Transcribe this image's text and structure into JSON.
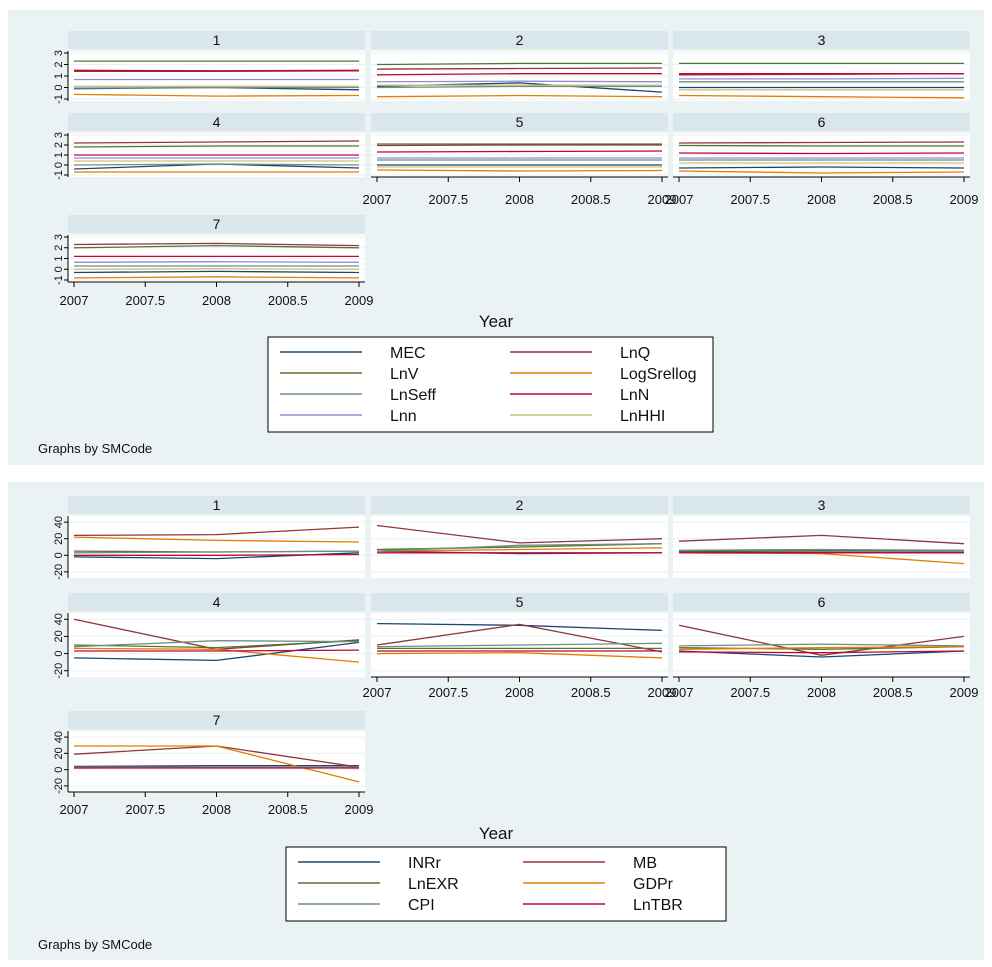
{
  "figures": [
    {
      "id": "top",
      "x_ticks": [
        "2007",
        "2007.5",
        "2008",
        "2008.5",
        "2009"
      ],
      "y_ticks": [
        "-1",
        "0",
        "1",
        "2",
        "3"
      ],
      "xlabel": "Year",
      "note": "Graphs by SMCode",
      "legend_columns": 2,
      "legend": [
        {
          "label": "MEC",
          "color": "#1a476f"
        },
        {
          "label": "LnQ",
          "color": "#90353b"
        },
        {
          "label": "LnV",
          "color": "#55752f"
        },
        {
          "label": "LogSrellog",
          "color": "#e37e00"
        },
        {
          "label": "LnSeff",
          "color": "#6e8e84"
        },
        {
          "label": "LnN",
          "color": "#c10534"
        },
        {
          "label": "Lnn",
          "color": "#938dd2"
        },
        {
          "label": "LnHHI",
          "color": "#cac27e"
        }
      ]
    },
    {
      "id": "bottom",
      "x_ticks": [
        "2007",
        "2007.5",
        "2008",
        "2008.5",
        "2009"
      ],
      "y_ticks": [
        "-20",
        "0",
        "20",
        "40"
      ],
      "xlabel": "Year",
      "note": "Graphs by SMCode",
      "legend_columns": 2,
      "legend": [
        {
          "label": "INRr",
          "color": "#1a476f"
        },
        {
          "label": "MB",
          "color": "#90353b"
        },
        {
          "label": "LnEXR",
          "color": "#55752f"
        },
        {
          "label": "GDPr",
          "color": "#e37e00"
        },
        {
          "label": "CPI",
          "color": "#6e8e84"
        },
        {
          "label": "LnTBR",
          "color": "#c10534"
        }
      ]
    }
  ],
  "chart_data": [
    {
      "type": "line",
      "title": "",
      "facet_by": "SMCode",
      "xlabel": "Year",
      "ylabel": "",
      "x": [
        2007,
        2008,
        2009
      ],
      "xlim": [
        2007,
        2009
      ],
      "ylim": [
        -1,
        3
      ],
      "panels": [
        {
          "title": "1",
          "series": [
            {
              "name": "MEC",
              "values": [
                -0.1,
                0.0,
                -0.2
              ]
            },
            {
              "name": "LnQ",
              "values": [
                1.4,
                1.4,
                1.45
              ]
            },
            {
              "name": "LnV",
              "values": [
                2.3,
                2.3,
                2.3
              ]
            },
            {
              "name": "LogSrellog",
              "values": [
                -0.6,
                -0.75,
                -0.7
              ]
            },
            {
              "name": "LnSeff",
              "values": [
                -0.05,
                0.0,
                0.0
              ]
            },
            {
              "name": "LnN",
              "values": [
                1.5,
                1.45,
                1.5
              ]
            },
            {
              "name": "Lnn",
              "values": [
                0.7,
                0.7,
                0.7
              ]
            },
            {
              "name": "LnHHI",
              "values": [
                0.1,
                0.1,
                0.1
              ]
            }
          ]
        },
        {
          "title": "2",
          "series": [
            {
              "name": "MEC",
              "values": [
                0.1,
                0.4,
                -0.4
              ]
            },
            {
              "name": "LnQ",
              "values": [
                1.6,
                1.65,
                1.7
              ]
            },
            {
              "name": "LnV",
              "values": [
                2.0,
                2.1,
                2.1
              ]
            },
            {
              "name": "LogSrellog",
              "values": [
                -0.8,
                -0.7,
                -0.8
              ]
            },
            {
              "name": "LnSeff",
              "values": [
                0.0,
                0.1,
                0.1
              ]
            },
            {
              "name": "LnN",
              "values": [
                1.1,
                1.2,
                1.2
              ]
            },
            {
              "name": "Lnn",
              "values": [
                0.5,
                0.55,
                0.5
              ]
            },
            {
              "name": "LnHHI",
              "values": [
                0.2,
                0.2,
                0.2
              ]
            }
          ]
        },
        {
          "title": "3",
          "series": [
            {
              "name": "MEC",
              "values": [
                0.0,
                0.0,
                0.0
              ]
            },
            {
              "name": "LnQ",
              "values": [
                1.1,
                1.15,
                1.2
              ]
            },
            {
              "name": "LnV",
              "values": [
                2.1,
                2.1,
                2.1
              ]
            },
            {
              "name": "LogSrellog",
              "values": [
                -0.7,
                -0.8,
                -0.9
              ]
            },
            {
              "name": "LnSeff",
              "values": [
                0.5,
                0.5,
                0.5
              ]
            },
            {
              "name": "LnN",
              "values": [
                1.2,
                1.2,
                1.2
              ]
            },
            {
              "name": "Lnn",
              "values": [
                0.75,
                0.75,
                0.8
              ]
            },
            {
              "name": "LnHHI",
              "values": [
                -0.2,
                -0.2,
                -0.2
              ]
            }
          ]
        },
        {
          "title": "4",
          "series": [
            {
              "name": "MEC",
              "values": [
                -0.4,
                0.1,
                -0.3
              ]
            },
            {
              "name": "LnQ",
              "values": [
                2.2,
                2.3,
                2.4
              ]
            },
            {
              "name": "LnV",
              "values": [
                1.8,
                1.9,
                1.9
              ]
            },
            {
              "name": "LogSrellog",
              "values": [
                -0.7,
                -0.7,
                -0.7
              ]
            },
            {
              "name": "LnSeff",
              "values": [
                0.0,
                0.1,
                0.0
              ]
            },
            {
              "name": "LnN",
              "values": [
                1.0,
                1.0,
                1.0
              ]
            },
            {
              "name": "Lnn",
              "values": [
                0.7,
                0.7,
                0.7
              ]
            },
            {
              "name": "LnHHI",
              "values": [
                0.4,
                0.4,
                0.4
              ]
            }
          ]
        },
        {
          "title": "5",
          "series": [
            {
              "name": "MEC",
              "values": [
                0.0,
                0.0,
                0.0
              ]
            },
            {
              "name": "LnQ",
              "values": [
                1.95,
                2.0,
                2.0
              ]
            },
            {
              "name": "LnV",
              "values": [
                2.1,
                2.1,
                2.1
              ]
            },
            {
              "name": "LogSrellog",
              "values": [
                -0.5,
                -0.6,
                -0.55
              ]
            },
            {
              "name": "LnSeff",
              "values": [
                0.5,
                0.5,
                0.5
              ]
            },
            {
              "name": "LnN",
              "values": [
                1.3,
                1.35,
                1.4
              ]
            },
            {
              "name": "Lnn",
              "values": [
                0.7,
                0.7,
                0.7
              ]
            },
            {
              "name": "LnHHI",
              "values": [
                -0.2,
                -0.2,
                -0.2
              ]
            }
          ]
        },
        {
          "title": "6",
          "series": [
            {
              "name": "MEC",
              "values": [
                -0.3,
                -0.2,
                -0.3
              ]
            },
            {
              "name": "LnQ",
              "values": [
                2.2,
                2.25,
                2.3
              ]
            },
            {
              "name": "LnV",
              "values": [
                1.95,
                1.9,
                1.9
              ]
            },
            {
              "name": "LogSrellog",
              "values": [
                -0.6,
                -0.8,
                -0.7
              ]
            },
            {
              "name": "LnSeff",
              "values": [
                0.5,
                0.5,
                0.5
              ]
            },
            {
              "name": "LnN",
              "values": [
                1.2,
                1.15,
                1.2
              ]
            },
            {
              "name": "Lnn",
              "values": [
                0.7,
                0.7,
                0.7
              ]
            },
            {
              "name": "LnHHI",
              "values": [
                0.2,
                0.2,
                0.2
              ]
            }
          ]
        },
        {
          "title": "7",
          "series": [
            {
              "name": "MEC",
              "values": [
                -0.3,
                -0.2,
                -0.3
              ]
            },
            {
              "name": "LnQ",
              "values": [
                2.3,
                2.4,
                2.2
              ]
            },
            {
              "name": "LnV",
              "values": [
                2.0,
                2.2,
                2.0
              ]
            },
            {
              "name": "LogSrellog",
              "values": [
                -0.8,
                -0.7,
                -0.8
              ]
            },
            {
              "name": "LnSeff",
              "values": [
                0.3,
                0.3,
                0.3
              ]
            },
            {
              "name": "LnN",
              "values": [
                1.2,
                1.2,
                1.2
              ]
            },
            {
              "name": "Lnn",
              "values": [
                0.65,
                0.7,
                0.65
              ]
            },
            {
              "name": "LnHHI",
              "values": [
                0.0,
                0.05,
                0.0
              ]
            }
          ]
        }
      ]
    },
    {
      "type": "line",
      "title": "",
      "facet_by": "SMCode",
      "xlabel": "Year",
      "ylabel": "",
      "x": [
        2007,
        2008,
        2009
      ],
      "xlim": [
        2007,
        2009
      ],
      "ylim": [
        -25,
        45
      ],
      "panels": [
        {
          "title": "1",
          "series": [
            {
              "name": "INRr",
              "values": [
                -2,
                -4,
                3
              ]
            },
            {
              "name": "MB",
              "values": [
                24,
                25,
                34
              ]
            },
            {
              "name": "LnEXR",
              "values": [
                5,
                4,
                5
              ]
            },
            {
              "name": "GDPr",
              "values": [
                22,
                18,
                16
              ]
            },
            {
              "name": "CPI",
              "values": [
                3,
                4,
                5
              ]
            },
            {
              "name": "LnTBR",
              "values": [
                0,
                0,
                1
              ]
            }
          ]
        },
        {
          "title": "2",
          "series": [
            {
              "name": "INRr",
              "values": [
                5,
                2,
                3
              ]
            },
            {
              "name": "MB",
              "values": [
                36,
                15,
                20
              ]
            },
            {
              "name": "LnEXR",
              "values": [
                7,
                10,
                14
              ]
            },
            {
              "name": "GDPr",
              "values": [
                5,
                7,
                9
              ]
            },
            {
              "name": "CPI",
              "values": [
                5,
                12,
                14
              ]
            },
            {
              "name": "LnTBR",
              "values": [
                3,
                3,
                3
              ]
            }
          ]
        },
        {
          "title": "3",
          "series": [
            {
              "name": "INRr",
              "values": [
                4,
                4,
                4
              ]
            },
            {
              "name": "MB",
              "values": [
                17,
                24,
                14
              ]
            },
            {
              "name": "LnEXR",
              "values": [
                5,
                6,
                6
              ]
            },
            {
              "name": "GDPr",
              "values": [
                3,
                2,
                -10
              ]
            },
            {
              "name": "CPI",
              "values": [
                6,
                7,
                6
              ]
            },
            {
              "name": "LnTBR",
              "values": [
                3,
                3,
                3
              ]
            }
          ]
        },
        {
          "title": "4",
          "series": [
            {
              "name": "INRr",
              "values": [
                -5,
                -8,
                13
              ]
            },
            {
              "name": "MB",
              "values": [
                40,
                5,
                16
              ]
            },
            {
              "name": "LnEXR",
              "values": [
                10,
                7,
                15
              ]
            },
            {
              "name": "GDPr",
              "values": [
                6,
                5,
                -10
              ]
            },
            {
              "name": "CPI",
              "values": [
                8,
                15,
                14
              ]
            },
            {
              "name": "LnTBR",
              "values": [
                3,
                3,
                4
              ]
            }
          ]
        },
        {
          "title": "5",
          "series": [
            {
              "name": "INRr",
              "values": [
                35,
                33,
                27
              ]
            },
            {
              "name": "MB",
              "values": [
                10,
                34,
                2
              ]
            },
            {
              "name": "LnEXR",
              "values": [
                6,
                6,
                6
              ]
            },
            {
              "name": "GDPr",
              "values": [
                0,
                1,
                -5
              ]
            },
            {
              "name": "CPI",
              "values": [
                8,
                10,
                12
              ]
            },
            {
              "name": "LnTBR",
              "values": [
                3,
                3,
                3
              ]
            }
          ]
        },
        {
          "title": "6",
          "series": [
            {
              "name": "INRr",
              "values": [
                3,
                -4,
                3
              ]
            },
            {
              "name": "MB",
              "values": [
                33,
                -2,
                20
              ]
            },
            {
              "name": "LnEXR",
              "values": [
                7,
                5,
                8
              ]
            },
            {
              "name": "GDPr",
              "values": [
                5,
                7,
                8
              ]
            },
            {
              "name": "CPI",
              "values": [
                9,
                11,
                9
              ]
            },
            {
              "name": "LnTBR",
              "values": [
                2,
                1,
                3
              ]
            }
          ]
        },
        {
          "title": "7",
          "series": [
            {
              "name": "INRr",
              "values": [
                4,
                5,
                5
              ]
            },
            {
              "name": "MB",
              "values": [
                19,
                29,
                3
              ]
            },
            {
              "name": "LnEXR",
              "values": [
                2,
                3,
                2
              ]
            },
            {
              "name": "GDPr",
              "values": [
                29,
                29,
                -15
              ]
            },
            {
              "name": "CPI",
              "values": [
                3,
                3,
                3
              ]
            },
            {
              "name": "LnTBR",
              "values": [
                2,
                2,
                2
              ]
            }
          ]
        }
      ]
    }
  ]
}
